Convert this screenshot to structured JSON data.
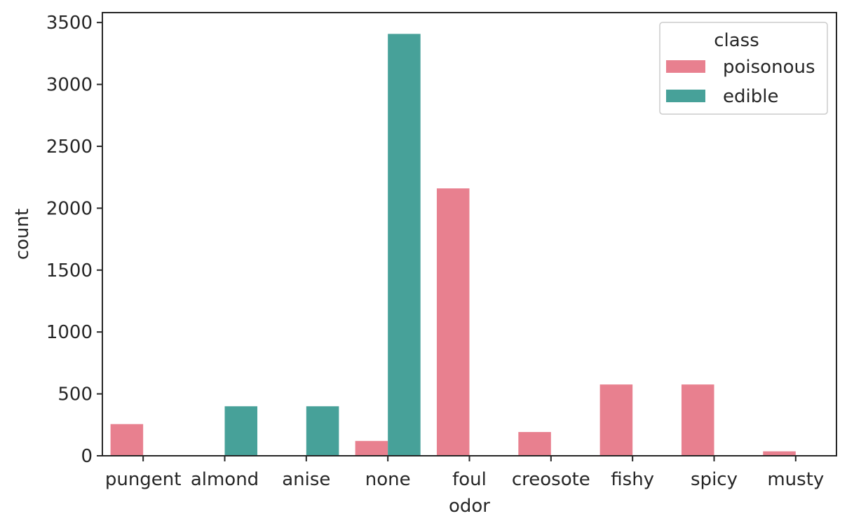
{
  "chart_data": {
    "type": "bar",
    "xlabel": "odor",
    "ylabel": "count",
    "categories": [
      "pungent",
      "almond",
      "anise",
      "none",
      "foul",
      "creosote",
      "fishy",
      "spicy",
      "musty"
    ],
    "series": [
      {
        "name": "poisonous",
        "color": "#e8808f",
        "values": [
          256,
          0,
          0,
          120,
          2160,
          192,
          576,
          576,
          36
        ]
      },
      {
        "name": "edible",
        "color": "#47a199",
        "values": [
          0,
          400,
          400,
          3408,
          0,
          0,
          0,
          0,
          0
        ]
      }
    ],
    "yticks": [
      0,
      500,
      1000,
      1500,
      2000,
      2500,
      3000,
      3500
    ],
    "ylim": [
      0,
      3580
    ],
    "legend": {
      "title": "class",
      "position": "top-right"
    },
    "grid": false
  }
}
